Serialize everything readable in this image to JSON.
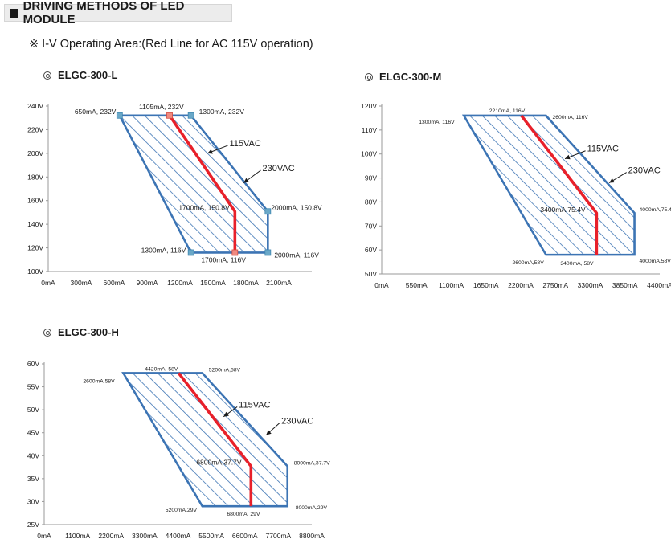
{
  "header": {
    "title": "DRIVING METHODS OF LED MODULE"
  },
  "subtitle": "※ I-V  Operating Area:(Red Line for AC 115V operation)",
  "colors": {
    "region": "#3c74b4",
    "hatch": "#3c74b4",
    "line115": "#e8202a",
    "marker": "#6aa8c8"
  },
  "chart_data": [
    {
      "type": "area",
      "title": "ELGC-300-L",
      "x_ticks": [
        "0mA",
        "300mA",
        "600mA",
        "900mA",
        "1200mA",
        "1500mA",
        "1800mA",
        "2100mA"
      ],
      "y_ticks": [
        "100V",
        "120V",
        "140V",
        "160V",
        "180V",
        "200V",
        "220V",
        "240V"
      ],
      "xlim": [
        0,
        2400
      ],
      "ylim": [
        100,
        240
      ],
      "region": [
        [
          650,
          232
        ],
        [
          1300,
          232
        ],
        [
          2000,
          150.8
        ],
        [
          2000,
          116
        ],
        [
          1300,
          116
        ]
      ],
      "line_115vac": [
        [
          1105,
          232
        ],
        [
          1700,
          150.8
        ],
        [
          1700,
          116
        ]
      ],
      "markers": [
        [
          650,
          232
        ],
        [
          1300,
          232
        ],
        [
          2000,
          150.8
        ],
        [
          2000,
          116
        ],
        [
          1300,
          116
        ]
      ],
      "red_markers": [
        [
          1105,
          232
        ],
        [
          1700,
          116
        ]
      ],
      "labels": [
        {
          "text": "650mA, 232V",
          "x": 650,
          "y": 232
        },
        {
          "text": "1105mA, 232V",
          "x": 1105,
          "y": 232
        },
        {
          "text": "1300mA, 232V",
          "x": 1300,
          "y": 232
        },
        {
          "text": "2000mA, 150.8V",
          "x": 2000,
          "y": 150.8
        },
        {
          "text": "1700mA, 150.8V",
          "x": 1700,
          "y": 150.8
        },
        {
          "text": "1300mA, 116V",
          "x": 1300,
          "y": 116
        },
        {
          "text": "1700mA, 116V",
          "x": 1700,
          "y": 116
        },
        {
          "text": "2000mA, 116V",
          "x": 2000,
          "y": 116
        }
      ],
      "annotations": [
        {
          "text": "115VAC",
          "x": 1650,
          "y": 208,
          "ax": 1450,
          "ay": 200
        },
        {
          "text": "230VAC",
          "x": 1950,
          "y": 187,
          "ax": 1780,
          "ay": 175
        }
      ]
    },
    {
      "type": "area",
      "title": "ELGC-300-M",
      "x_ticks": [
        "0mA",
        "550mA",
        "1100mA",
        "1650mA",
        "2200mA",
        "2750mA",
        "3300mA",
        "3850mA",
        "4400mA"
      ],
      "y_ticks": [
        "50V",
        "60V",
        "70V",
        "80V",
        "90V",
        "100V",
        "110V",
        "120V"
      ],
      "xlim": [
        0,
        4400
      ],
      "ylim": [
        50,
        120
      ],
      "region": [
        [
          1300,
          116
        ],
        [
          2600,
          116
        ],
        [
          4000,
          75.4
        ],
        [
          4000,
          58
        ],
        [
          2600,
          58
        ]
      ],
      "line_115vac": [
        [
          2210,
          116
        ],
        [
          3400,
          75.4
        ],
        [
          3400,
          58
        ]
      ],
      "markers": [],
      "red_markers": [],
      "labels": [
        {
          "text": "1300mA, 116V",
          "x": 1300,
          "y": 116
        },
        {
          "text": "2210mA, 116V",
          "x": 2210,
          "y": 116
        },
        {
          "text": "2600mA, 116V",
          "x": 2600,
          "y": 116
        },
        {
          "text": "4000mA,75.4V",
          "x": 4000,
          "y": 75.4
        },
        {
          "text": "3400mA,75.4V",
          "x": 3400,
          "y": 75.4
        },
        {
          "text": "2600mA,58V",
          "x": 2600,
          "y": 58
        },
        {
          "text": "3400mA, 58V",
          "x": 3400,
          "y": 58
        },
        {
          "text": "4000mA,58V",
          "x": 4000,
          "y": 58
        }
      ],
      "annotations": [
        {
          "text": "115VAC",
          "x": 3250,
          "y": 102,
          "ax": 2900,
          "ay": 98
        },
        {
          "text": "230VAC",
          "x": 3900,
          "y": 93,
          "ax": 3600,
          "ay": 88
        }
      ]
    },
    {
      "type": "area",
      "title": "ELGC-300-H",
      "x_ticks": [
        "0mA",
        "1100mA",
        "2200mA",
        "3300mA",
        "4400mA",
        "5500mA",
        "6600mA",
        "7700mA",
        "8800mA"
      ],
      "y_ticks": [
        "25V",
        "30V",
        "35V",
        "40V",
        "45V",
        "50V",
        "55V",
        "60V"
      ],
      "xlim": [
        0,
        8800
      ],
      "ylim": [
        25,
        60
      ],
      "region": [
        [
          2600,
          58
        ],
        [
          5200,
          58
        ],
        [
          8000,
          37.7
        ],
        [
          8000,
          29
        ],
        [
          5200,
          29
        ]
      ],
      "line_115vac": [
        [
          4420,
          58
        ],
        [
          6800,
          37.7
        ],
        [
          6800,
          29
        ]
      ],
      "markers": [],
      "red_markers": [],
      "labels": [
        {
          "text": "2600mA,58V",
          "x": 2600,
          "y": 58
        },
        {
          "text": "4420mA, 58V",
          "x": 4420,
          "y": 58
        },
        {
          "text": "5200mA,58V",
          "x": 5200,
          "y": 58
        },
        {
          "text": "8000mA,37.7V",
          "x": 8000,
          "y": 37.7
        },
        {
          "text": "6800mA,37.7V",
          "x": 6800,
          "y": 37.7
        },
        {
          "text": "5200mA,29V",
          "x": 5200,
          "y": 29
        },
        {
          "text": "6800mA, 29V",
          "x": 6800,
          "y": 29
        },
        {
          "text": "8000mA,29V",
          "x": 8000,
          "y": 29
        }
      ],
      "annotations": [
        {
          "text": "115VAC",
          "x": 6400,
          "y": 51,
          "ax": 5900,
          "ay": 48.5
        },
        {
          "text": "230VAC",
          "x": 7800,
          "y": 47.5,
          "ax": 7300,
          "ay": 44.5
        }
      ]
    }
  ]
}
